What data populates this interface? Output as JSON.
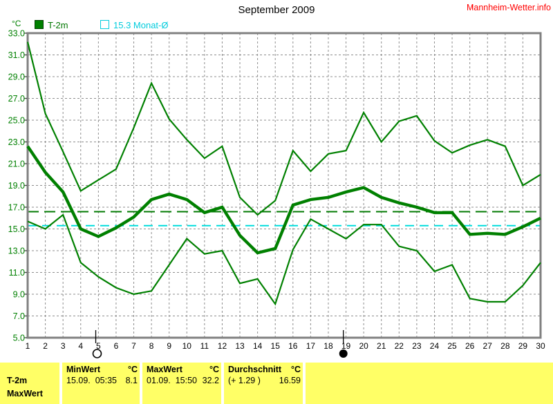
{
  "header": {
    "title": "September 2009",
    "watermark": "Mannheim-Wetter.info"
  },
  "legend": {
    "t2m_label": "T-2m",
    "monat_label": "15.3 Monat-Ø"
  },
  "chart_data": {
    "type": "line",
    "title": "September 2009",
    "xlabel": "",
    "ylabel": "°C",
    "x": [
      1,
      2,
      3,
      4,
      5,
      6,
      7,
      8,
      9,
      10,
      11,
      12,
      13,
      14,
      15,
      16,
      17,
      18,
      19,
      20,
      21,
      22,
      23,
      24,
      25,
      26,
      27,
      28,
      29,
      30
    ],
    "x_ticks": [
      1,
      2,
      3,
      4,
      5,
      6,
      7,
      8,
      9,
      10,
      11,
      12,
      13,
      14,
      15,
      16,
      17,
      18,
      19,
      20,
      21,
      22,
      23,
      24,
      25,
      26,
      27,
      28,
      29,
      30
    ],
    "y_ticks": [
      5,
      7,
      9,
      11,
      13,
      15,
      17,
      19,
      21,
      23,
      25,
      27,
      29,
      31,
      33
    ],
    "ylim": [
      5,
      33
    ],
    "grid": true,
    "series": [
      {
        "name": "T-2m daily maximum",
        "color": "#008000",
        "width": 2.2,
        "values": [
          32.2,
          25.6,
          22.1,
          18.5,
          19.5,
          20.5,
          24.3,
          28.4,
          25.1,
          23.2,
          21.5,
          22.6,
          17.9,
          16.3,
          17.6,
          22.2,
          20.3,
          21.9,
          22.2,
          25.7,
          23.0,
          24.9,
          25.4,
          23.1,
          22.0,
          22.7,
          23.2,
          22.6,
          19.0,
          20.0
        ]
      },
      {
        "name": "T-2m daily mean",
        "color": "#008000",
        "width": 4.4,
        "values": [
          22.6,
          20.2,
          18.4,
          15.0,
          14.3,
          15.1,
          16.1,
          17.7,
          18.2,
          17.7,
          16.5,
          17.0,
          14.4,
          12.8,
          13.2,
          17.2,
          17.7,
          17.9,
          18.4,
          18.8,
          17.9,
          17.4,
          17.0,
          16.5,
          16.5,
          14.5,
          14.6,
          14.5,
          15.2,
          16.0
        ]
      },
      {
        "name": "T-2m daily minimum",
        "color": "#008000",
        "width": 2.2,
        "values": [
          15.7,
          15.0,
          16.3,
          11.9,
          10.6,
          9.6,
          9.0,
          9.3,
          11.7,
          14.1,
          12.7,
          13.0,
          10.0,
          10.4,
          8.1,
          13.1,
          15.9,
          15.0,
          14.1,
          15.4,
          15.4,
          13.4,
          13.0,
          11.1,
          11.7,
          8.6,
          8.3,
          8.3,
          9.8,
          11.9
        ]
      }
    ],
    "reference_lines": [
      {
        "label": "Durchschnitt 16.59",
        "value": 16.59,
        "color": "#007a00",
        "dash": "16,8",
        "width": 2
      },
      {
        "label": "15.3 Monat-Ø",
        "value": 15.3,
        "color": "#00dddd",
        "dash": "13,8",
        "width": 2
      }
    ],
    "moon_phases": [
      {
        "symbol": "full-moon-circle",
        "day": 4.85
      },
      {
        "symbol": "new-moon-circle",
        "day": 18.85
      }
    ],
    "colors": {
      "frame": "#808080",
      "grid": "#8c8c8c",
      "y_label": "#008000",
      "x_label": "#000000"
    }
  },
  "table": {
    "row_label": "T-2m",
    "next_row_label": "MaxWert",
    "min": {
      "header": "MinWert",
      "unit": "°C",
      "datetime": "15.09.  05:35",
      "value": "8.1"
    },
    "max": {
      "header": "MaxWert",
      "unit": "°C",
      "datetime": "01.09.  15:50",
      "value": "32.2"
    },
    "avg": {
      "header": "Durchschnitt",
      "unit": "°C",
      "anomaly": "(+ 1.29 )",
      "value": "16.59"
    }
  }
}
